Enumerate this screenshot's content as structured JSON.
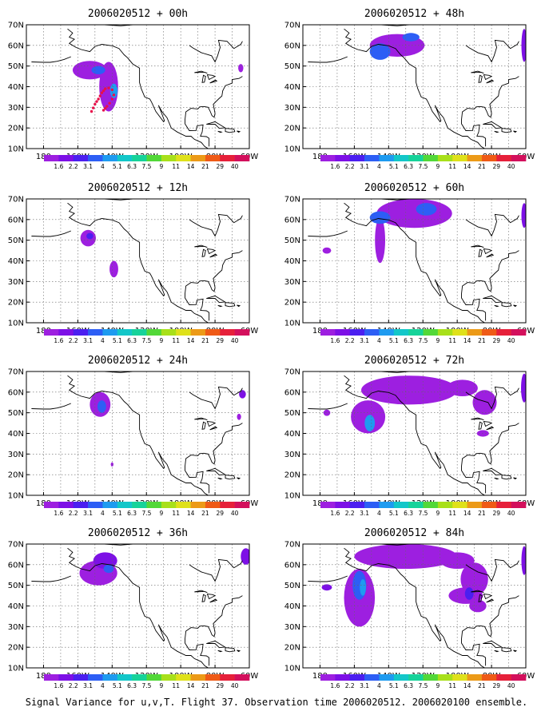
{
  "figure": {
    "caption": "Signal Variance for u,v,T. Flight 37. Observation time 2006020512. 2006020100 ensemble.",
    "grid_on": true,
    "map_extent": {
      "lon": [
        -190,
        -60
      ],
      "lat": [
        10,
        70
      ]
    },
    "lat_ticks": [
      "10N",
      "20N",
      "30N",
      "40N",
      "50N",
      "60N",
      "70N"
    ],
    "lon_ticks": [
      "180",
      "160W",
      "140W",
      "120W",
      "100W",
      "80W",
      "60W"
    ],
    "colorbar": {
      "levels": [
        "1.6",
        "2.2",
        "3.1",
        "4",
        "5.1",
        "6.3",
        "7.5",
        "9",
        "11",
        "14",
        "21",
        "29",
        "40"
      ],
      "colors": [
        "#9d1fe0",
        "#7d10e6",
        "#4b1ff0",
        "#2d5ef5",
        "#1e9bf0",
        "#13c7c9",
        "#16d39a",
        "#52d838",
        "#a8e01a",
        "#dfe11a",
        "#ec9a17",
        "#ef5a16",
        "#e6203a",
        "#d3105c"
      ]
    }
  },
  "panels": [
    {
      "title": "2006020512 + 00h"
    },
    {
      "title": "2006020512 + 48h"
    },
    {
      "title": "2006020512 + 12h"
    },
    {
      "title": "2006020512 + 60h"
    },
    {
      "title": "2006020512 + 24h"
    },
    {
      "title": "2006020512 + 72h"
    },
    {
      "title": "2006020512 + 36h"
    },
    {
      "title": "2006020512 + 84h"
    }
  ]
}
